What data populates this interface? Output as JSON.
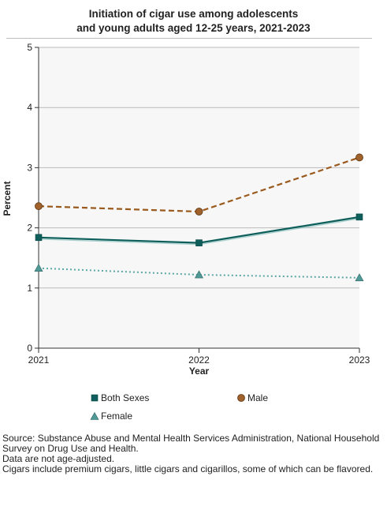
{
  "title_lines": [
    "Initiation of cigar use among adolescents",
    "and young adults aged 12-25 years, 2021-2023"
  ],
  "colors": {
    "both_sexes": "#0e5f5b",
    "male": "#9a5a1e",
    "male_marker": "#a0622a",
    "female": "#5aa7a3",
    "female_marker": "#4f9a96",
    "plot_bg": "#f7f7f7",
    "grid": "#bbbbbb"
  },
  "chart_data": {
    "type": "line",
    "x": [
      "2021",
      "2022",
      "2023"
    ],
    "xlabel": "Year",
    "ylabel": "Percent",
    "ylim": [
      0,
      5
    ],
    "yticks": [
      "0",
      "1",
      "2",
      "3",
      "4",
      "5"
    ],
    "grid": true,
    "legend_position": "bottom",
    "series": [
      {
        "name": "Both Sexes",
        "key": "both",
        "values": [
          1.84,
          1.75,
          2.18
        ],
        "line_style": "solid",
        "marker": "square"
      },
      {
        "name": "Male",
        "key": "male",
        "values": [
          2.36,
          2.27,
          3.17
        ],
        "line_style": "dashed",
        "marker": "circle"
      },
      {
        "name": "Female",
        "key": "female",
        "values": [
          1.33,
          1.22,
          1.17
        ],
        "line_style": "dotted",
        "marker": "triangle"
      }
    ]
  },
  "legend": [
    {
      "label": "Both Sexes",
      "icon": "square-marker-icon",
      "color": "#0e5f5b"
    },
    {
      "label": "Male",
      "icon": "circle-marker-icon",
      "color": "#9a5a1e"
    },
    {
      "label": "Female",
      "icon": "triangle-marker-icon",
      "color": "#5aa7a3"
    }
  ],
  "notes": [
    "Source: Substance Abuse and Mental Health Services Administration, National Household Survey on Drug Use and Health.",
    "Data are not age-adjusted.",
    "Cigars include premium cigars, little cigars and cigarillos, some of which can be flavored."
  ]
}
